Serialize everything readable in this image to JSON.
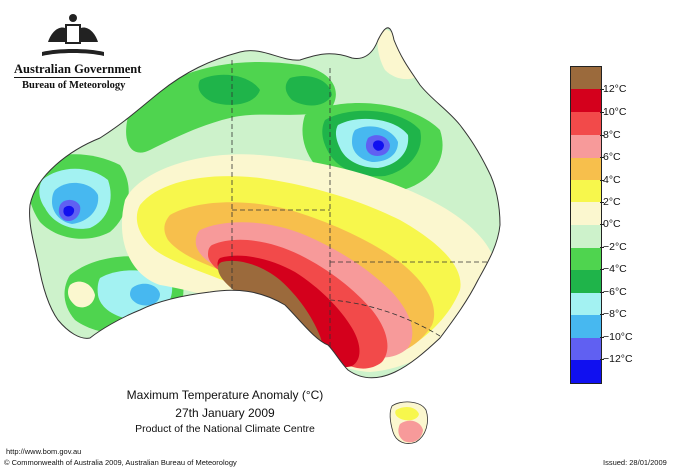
{
  "header": {
    "government": "Australian Government",
    "bureau": "Bureau of Meteorology"
  },
  "map_title": {
    "line1": "Maximum Temperature Anomaly (°C)",
    "line2": "27th January 2009",
    "line3": "Product of the National Climate Centre"
  },
  "legend": {
    "bins": [
      {
        "label": "12°C",
        "color": "#9b6a3c"
      },
      {
        "label": "10°C",
        "color": "#d4001c"
      },
      {
        "label": "8°C",
        "color": "#f24a4a"
      },
      {
        "label": "6°C",
        "color": "#f79a9a"
      },
      {
        "label": "4°C",
        "color": "#f7bf4c"
      },
      {
        "label": "2°C",
        "color": "#f7f74c"
      },
      {
        "label": "0°C",
        "color": "#fbf7cf"
      },
      {
        "label": "−2°C",
        "color": "#cdf2cb"
      },
      {
        "label": "−4°C",
        "color": "#4fd44f"
      },
      {
        "label": "−6°C",
        "color": "#1fb44a"
      },
      {
        "label": "−8°C",
        "color": "#a3f2f2"
      },
      {
        "label": "−10°C",
        "color": "#47b8f0"
      },
      {
        "label": "−12°C",
        "color": "#6060f2"
      }
    ],
    "bottom_color": "#1010f0"
  },
  "footer": {
    "url": "http://www.bom.gov.au",
    "copyright": "© Commonwealth of Australia 2009, Australian Bureau of Meteorology",
    "issued": "Issued: 28/01/2009"
  }
}
